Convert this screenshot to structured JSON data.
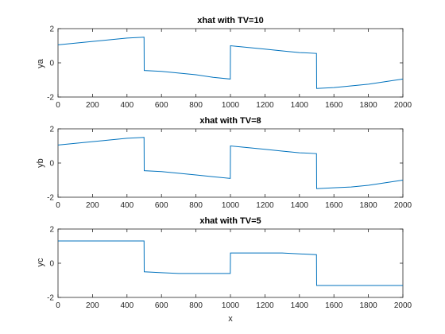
{
  "figure": {
    "background": "#ffffff"
  },
  "chart_data": [
    {
      "type": "line",
      "title": "xhat with TV=10",
      "xlabel": "",
      "ylabel": "ya",
      "xlim": [
        0,
        2000
      ],
      "ylim": [
        -2,
        2
      ],
      "xticks": [
        0,
        200,
        400,
        600,
        800,
        1000,
        1200,
        1400,
        1600,
        1800,
        2000
      ],
      "yticks": [
        -2,
        0,
        2
      ],
      "grid": false,
      "color": "#0072BD",
      "series": [
        {
          "x": [
            0,
            100,
            200,
            300,
            400,
            499,
            500,
            600,
            700,
            800,
            900,
            999,
            1000,
            1100,
            1200,
            1300,
            1400,
            1499,
            1500,
            1600,
            1700,
            1800,
            1900,
            2000
          ],
          "values": [
            1.05,
            1.15,
            1.25,
            1.35,
            1.45,
            1.5,
            -0.45,
            -0.5,
            -0.6,
            -0.7,
            -0.85,
            -0.95,
            1.0,
            0.9,
            0.8,
            0.7,
            0.6,
            0.55,
            -1.5,
            -1.45,
            -1.35,
            -1.25,
            -1.1,
            -0.95
          ]
        }
      ]
    },
    {
      "type": "line",
      "title": "xhat with TV=8",
      "xlabel": "",
      "ylabel": "yb",
      "xlim": [
        0,
        2000
      ],
      "ylim": [
        -2,
        2
      ],
      "xticks": [
        0,
        200,
        400,
        600,
        800,
        1000,
        1200,
        1400,
        1600,
        1800,
        2000
      ],
      "yticks": [
        -2,
        0,
        2
      ],
      "grid": false,
      "color": "#0072BD",
      "series": [
        {
          "x": [
            0,
            100,
            200,
            300,
            400,
            499,
            500,
            600,
            700,
            800,
            900,
            999,
            1000,
            1100,
            1200,
            1300,
            1400,
            1499,
            1500,
            1600,
            1700,
            1800,
            1900,
            2000
          ],
          "values": [
            1.05,
            1.15,
            1.25,
            1.35,
            1.45,
            1.5,
            -0.45,
            -0.5,
            -0.6,
            -0.7,
            -0.8,
            -0.9,
            1.0,
            0.9,
            0.8,
            0.7,
            0.6,
            0.55,
            -1.5,
            -1.45,
            -1.4,
            -1.3,
            -1.15,
            -1.0
          ]
        }
      ]
    },
    {
      "type": "line",
      "title": "xhat with TV=5",
      "xlabel": "x",
      "ylabel": "yc",
      "xlim": [
        0,
        2000
      ],
      "ylim": [
        -2,
        2
      ],
      "xticks": [
        0,
        200,
        400,
        600,
        800,
        1000,
        1200,
        1400,
        1600,
        1800,
        2000
      ],
      "yticks": [
        -2,
        0,
        2
      ],
      "grid": false,
      "color": "#0072BD",
      "series": [
        {
          "x": [
            0,
            499,
            500,
            600,
            700,
            999,
            1000,
            1300,
            1499,
            1500,
            2000
          ],
          "values": [
            1.3,
            1.3,
            -0.5,
            -0.55,
            -0.6,
            -0.6,
            0.6,
            0.6,
            0.5,
            -1.3,
            -1.3
          ]
        }
      ]
    }
  ]
}
